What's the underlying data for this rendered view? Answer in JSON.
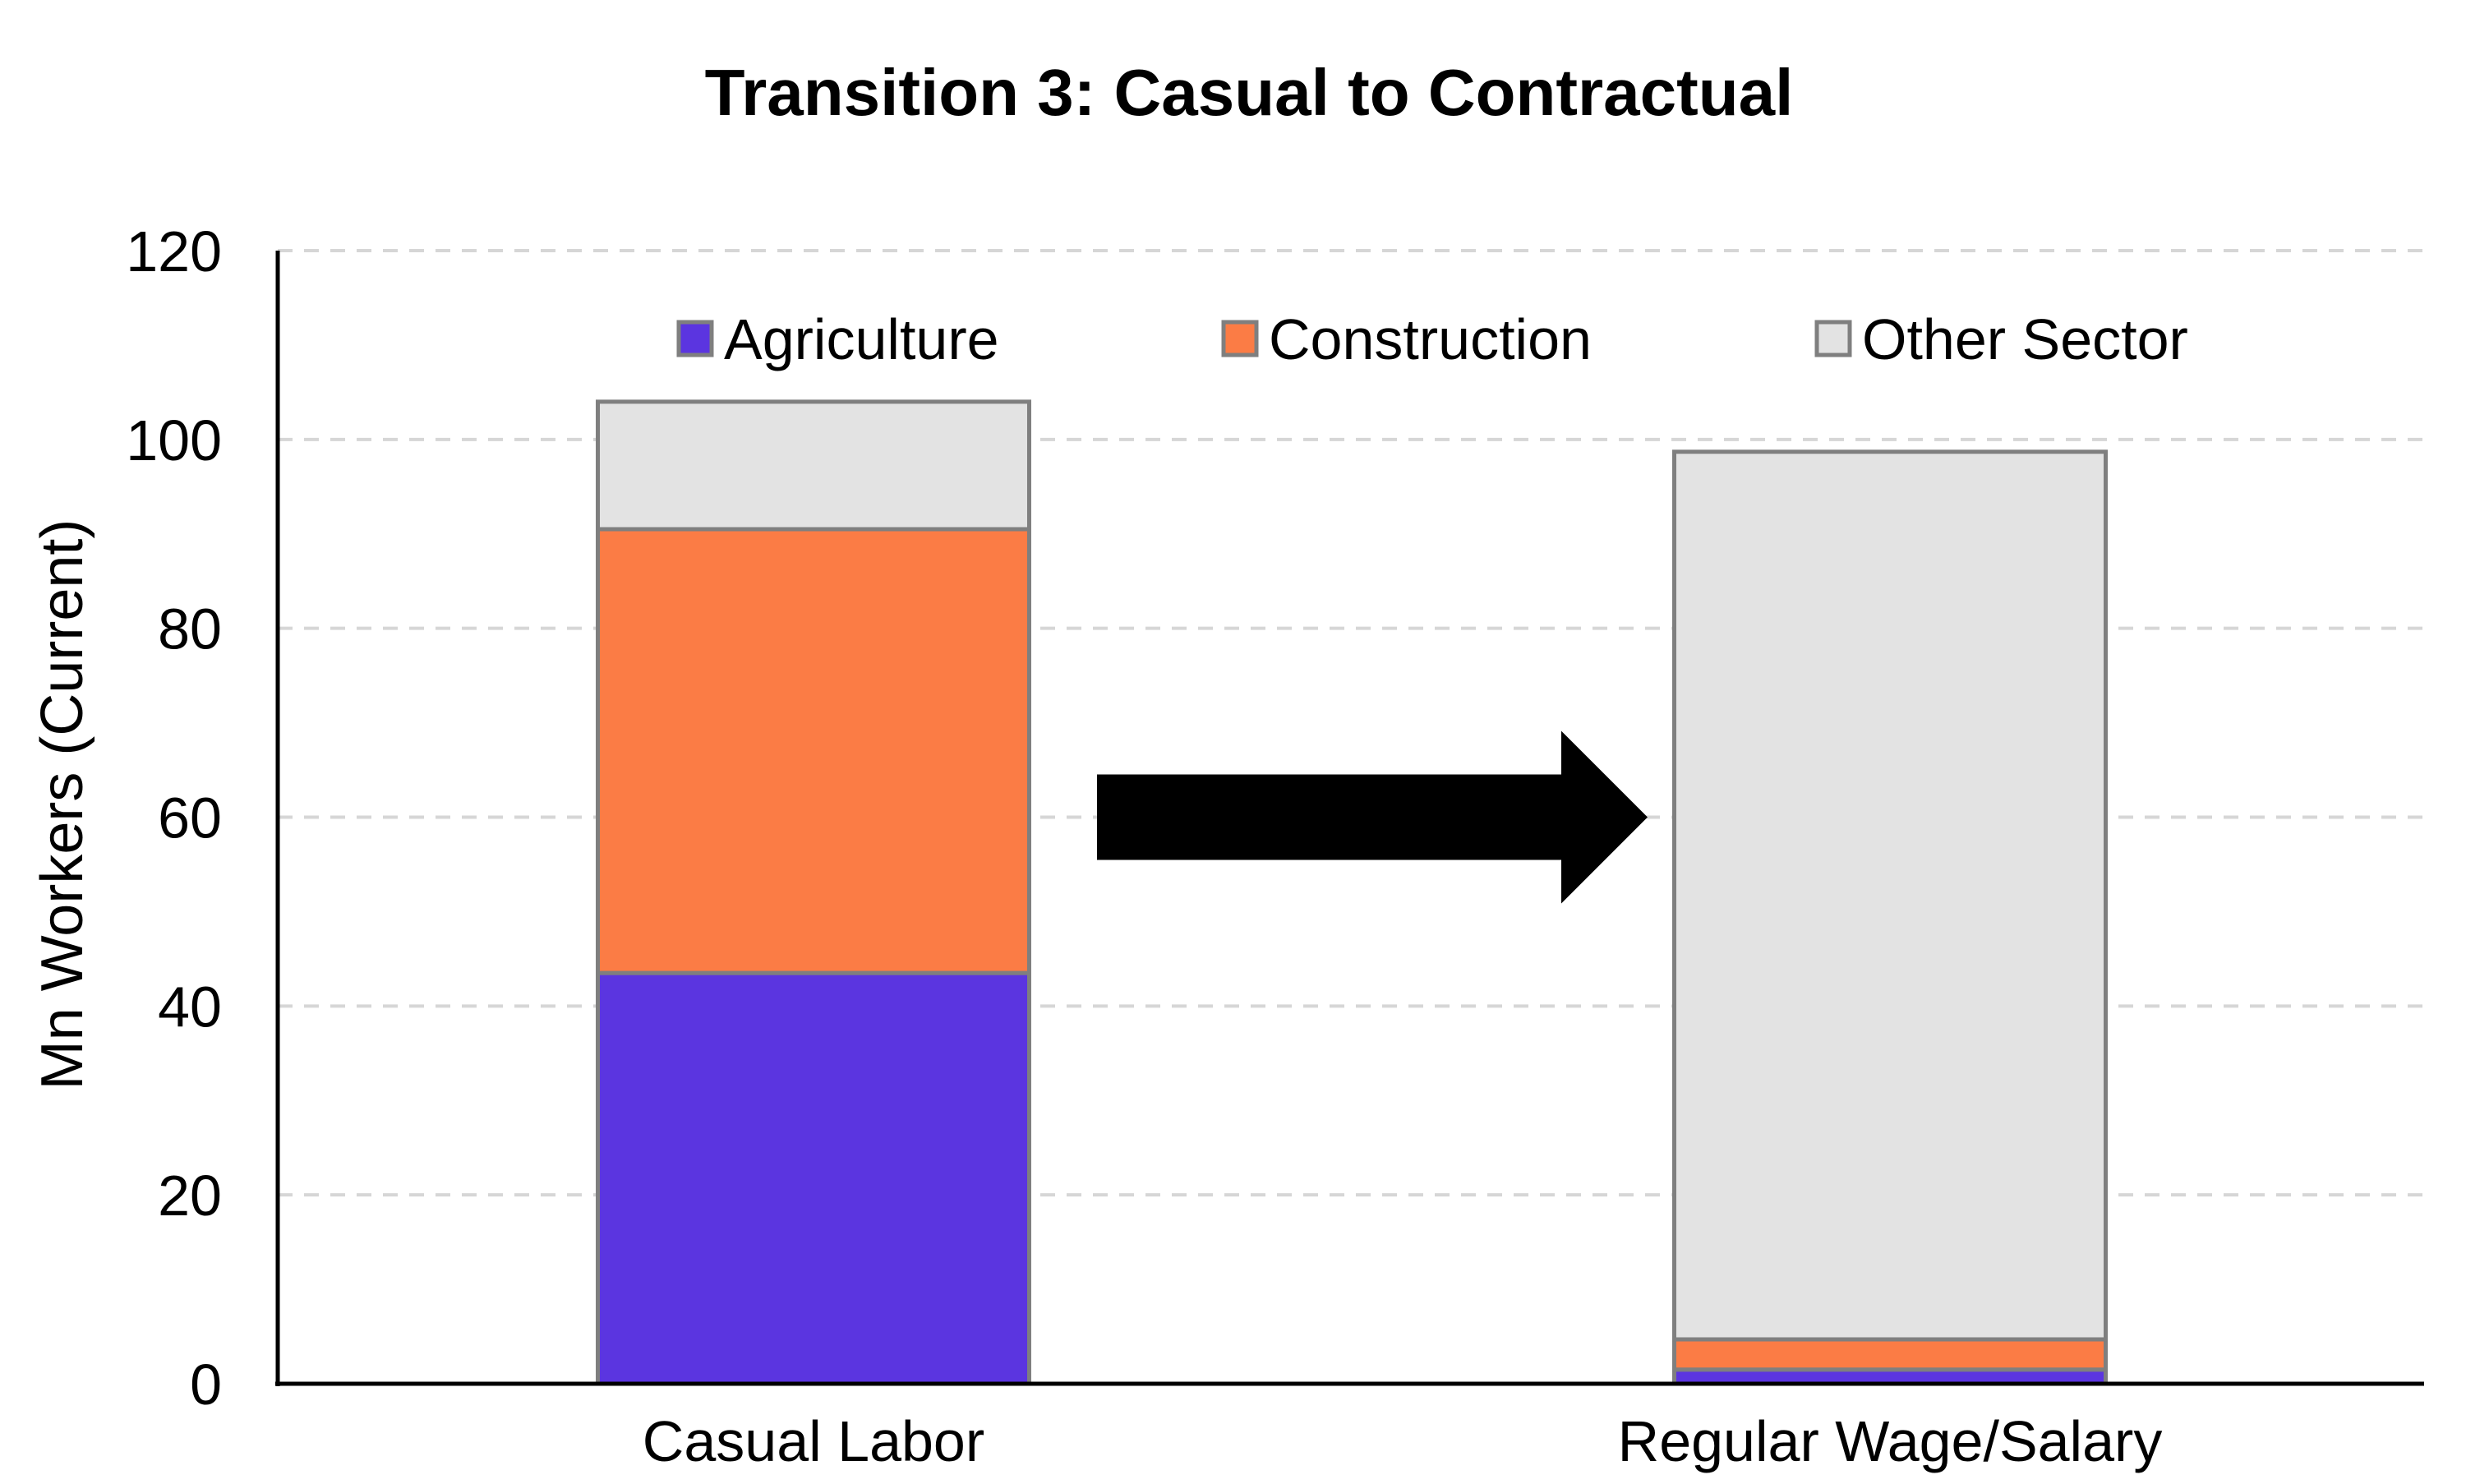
{
  "chart_data": {
    "type": "bar",
    "stacked": true,
    "title": "Transition 3: Casual to Contractual",
    "xlabel": "",
    "ylabel": "Mn Workers (Current)",
    "ylim": [
      0,
      120
    ],
    "yticks": [
      0,
      20,
      40,
      60,
      80,
      100,
      120
    ],
    "grid": true,
    "legend_position": "top",
    "categories": [
      "Casual Labor",
      "Regular Wage/Salary"
    ],
    "series": [
      {
        "name": "Agriculture",
        "color": "#5b35e0",
        "values": [
          43.5,
          1.5
        ]
      },
      {
        "name": "Construction",
        "color": "#fb7c45",
        "values": [
          47.0,
          3.2
        ]
      },
      {
        "name": "Other Sector",
        "color": "#e3e3e3",
        "values": [
          13.5,
          94.0
        ]
      }
    ],
    "annotations": [
      {
        "type": "arrow",
        "direction": "right",
        "icon": "right-arrow-icon",
        "color": "#000000",
        "from_category": "Casual Labor",
        "to_category": "Regular Wage/Salary"
      }
    ]
  }
}
